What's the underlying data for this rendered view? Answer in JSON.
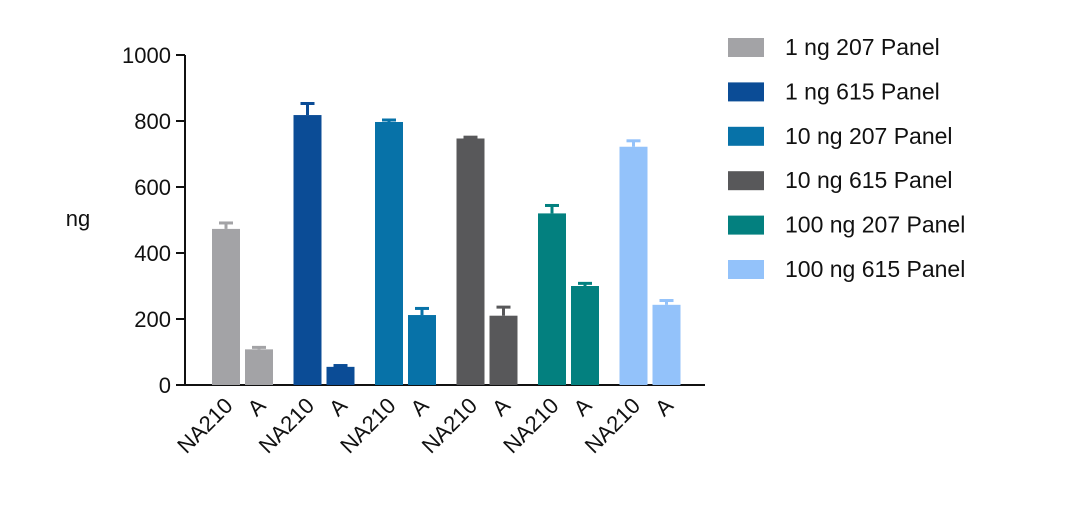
{
  "chart_data": {
    "type": "bar",
    "ylabel": "ng",
    "ylim": [
      0,
      1000
    ],
    "yticks": [
      0,
      200,
      400,
      600,
      800,
      1000
    ],
    "y_tick_labels": [
      "0",
      "200",
      "400",
      "600",
      "800",
      "1000"
    ],
    "grid": false,
    "legend_position": "right",
    "groups": [
      {
        "series": "1 ng 207 Panel",
        "color": "#A3A3A6",
        "bars": [
          {
            "category": "NA210",
            "value": 473,
            "error": 18
          },
          {
            "category": "A",
            "value": 108,
            "error": 6
          }
        ]
      },
      {
        "series": "1 ng 615 Panel",
        "color": "#0B4C96",
        "bars": [
          {
            "category": "NA210",
            "value": 818,
            "error": 35
          },
          {
            "category": "A",
            "value": 55,
            "error": 4
          }
        ]
      },
      {
        "series": "10 ng 207 Panel",
        "color": "#0772A8",
        "bars": [
          {
            "category": "NA210",
            "value": 797,
            "error": 6
          },
          {
            "category": "A",
            "value": 212,
            "error": 20
          }
        ]
      },
      {
        "series": "10 ng 615 Panel",
        "color": "#58585A",
        "bars": [
          {
            "category": "NA210",
            "value": 747,
            "error": 4
          },
          {
            "category": "A",
            "value": 210,
            "error": 26
          }
        ]
      },
      {
        "series": "100 ng 207 Panel",
        "color": "#03807F",
        "bars": [
          {
            "category": "NA210",
            "value": 520,
            "error": 24
          },
          {
            "category": "A",
            "value": 300,
            "error": 8
          }
        ]
      },
      {
        "series": "100 ng 615 Panel",
        "color": "#93C2FA",
        "bars": [
          {
            "category": "NA210",
            "value": 722,
            "error": 18
          },
          {
            "category": "A",
            "value": 243,
            "error": 13
          }
        ]
      }
    ]
  }
}
